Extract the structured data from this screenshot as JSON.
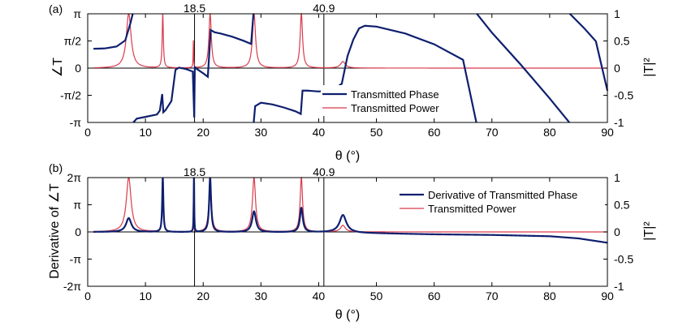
{
  "chart_data": [
    {
      "type": "line",
      "panel_label": "(a)",
      "xlabel": "θ (°)",
      "ylabel_left": "∠T",
      "ylabel_right": "|T|²",
      "xlim": [
        0,
        90
      ],
      "ylim_left": [
        -3.1416,
        3.1416
      ],
      "ylim_right": [
        -1,
        1
      ],
      "xticks": [
        "0",
        "10",
        "20",
        "30",
        "40",
        "50",
        "60",
        "70",
        "80",
        "90"
      ],
      "yticks_left": [
        "-π",
        "-π/2",
        "0",
        "π/2",
        "π"
      ],
      "yticks_right": [
        "-1",
        "-0.5",
        "0",
        "0.5",
        "1"
      ],
      "markers": [
        {
          "x": 18.5,
          "label": "18.5"
        },
        {
          "x": 40.9,
          "label": "40.9"
        }
      ],
      "legend": [
        "Transmitted Phase",
        "Transmitted Power"
      ],
      "series": [
        {
          "name": "Transmitted Phase",
          "axis": "left",
          "color": "#0e1f6e",
          "points": [
            [
              1,
              1.12
            ],
            [
              3,
              1.14
            ],
            [
              5,
              1.25
            ],
            [
              6.5,
              1.6
            ],
            [
              7.4,
              2.6
            ],
            [
              7.8,
              3.14
            ],
            [
              7.9,
              -3.14
            ],
            [
              8.5,
              -2.92
            ],
            [
              10,
              -2.82
            ],
            [
              12,
              -2.68
            ],
            [
              12.5,
              -2.45
            ],
            [
              12.9,
              -1.5
            ],
            [
              13.1,
              -2.55
            ],
            [
              13.5,
              -2.42
            ],
            [
              14.5,
              -1.9
            ],
            [
              15.2,
              -0.1
            ],
            [
              15.8,
              0.03
            ],
            [
              17,
              -0.05
            ],
            [
              18.2,
              -0.2
            ],
            [
              18.45,
              -2.85
            ],
            [
              18.55,
              0.05
            ],
            [
              18.9,
              -0.05
            ],
            [
              20,
              -0.3
            ],
            [
              20.8,
              -0.5
            ],
            [
              21.3,
              2.2
            ],
            [
              22,
              2.07
            ],
            [
              23,
              2.0
            ],
            [
              25,
              1.82
            ],
            [
              27,
              1.58
            ],
            [
              28.3,
              1.4
            ],
            [
              28.7,
              3.14
            ],
            [
              28.75,
              -3.14
            ],
            [
              29,
              -2.2
            ],
            [
              30,
              -2.0
            ],
            [
              32,
              -2.1
            ],
            [
              34,
              -2.28
            ],
            [
              36,
              -2.5
            ],
            [
              36.9,
              -2.65
            ],
            [
              37.2,
              -1.3
            ],
            [
              38,
              -1.3
            ],
            [
              40,
              -1.35
            ],
            [
              42,
              -1.28
            ],
            [
              43,
              -1.15
            ],
            [
              44,
              -0.9
            ],
            [
              45,
              0.7
            ],
            [
              46,
              1.65
            ],
            [
              47,
              2.3
            ],
            [
              48,
              2.45
            ],
            [
              50,
              2.4
            ],
            [
              55,
              2.0
            ],
            [
              60,
              1.38
            ],
            [
              65,
              0.48
            ],
            [
              67.3,
              -3.14
            ],
            [
              67.4,
              3.14
            ],
            [
              70,
              2.05
            ],
            [
              75,
              0.2
            ],
            [
              80,
              -1.75
            ],
            [
              83.4,
              -3.14
            ],
            [
              83.5,
              3.14
            ],
            [
              86,
              2.3
            ],
            [
              88,
              1.55
            ],
            [
              90,
              -1.3
            ]
          ]
        },
        {
          "name": "Transmitted Power",
          "axis": "right",
          "color": "#d93b4b",
          "peaks": [
            {
              "x": 7.1,
              "h": 1.0,
              "w": 0.5
            },
            {
              "x": 13.0,
              "h": 1.0,
              "w": 0.12
            },
            {
              "x": 18.3,
              "h": 0.5,
              "w": 0.05
            },
            {
              "x": 21.2,
              "h": 1.0,
              "w": 0.25
            },
            {
              "x": 28.8,
              "h": 1.0,
              "w": 0.32
            },
            {
              "x": 37.0,
              "h": 1.0,
              "w": 0.25
            },
            {
              "x": 44.2,
              "h": 0.12,
              "w": 0.5
            }
          ]
        }
      ]
    },
    {
      "type": "line",
      "panel_label": "(b)",
      "xlabel": "θ (°)",
      "ylabel_left": "Derivative of ∠T",
      "ylabel_right": "|T|²",
      "xlim": [
        0,
        90
      ],
      "ylim_left": [
        -6.2832,
        6.2832
      ],
      "ylim_right": [
        -1,
        1
      ],
      "xticks": [
        "0",
        "10",
        "20",
        "30",
        "40",
        "50",
        "60",
        "70",
        "80",
        "90"
      ],
      "yticks_left": [
        "-2π",
        "-π",
        "0",
        "π",
        "2π"
      ],
      "yticks_right": [
        "-1",
        "-0.5",
        "0",
        "0.5",
        "1"
      ],
      "markers": [
        {
          "x": 18.5,
          "label": "18.5"
        },
        {
          "x": 40.9,
          "label": "40.9"
        }
      ],
      "legend": [
        "Derivative of Transmitted Phase",
        "Transmitted Power"
      ],
      "series": [
        {
          "name": "Derivative of Transmitted Phase",
          "axis": "left",
          "color": "#0e1f6e",
          "peaks": [
            {
              "x": 7.1,
              "h": 1.6,
              "w": 0.55
            },
            {
              "x": 13.0,
              "h": 6.28,
              "w": 0.12
            },
            {
              "x": 18.4,
              "h": 6.28,
              "w": 0.05
            },
            {
              "x": 21.2,
              "h": 6.28,
              "w": 0.2
            },
            {
              "x": 28.8,
              "h": 2.4,
              "w": 0.4
            },
            {
              "x": 37.0,
              "h": 2.8,
              "w": 0.3
            },
            {
              "x": 44.2,
              "h": 2.0,
              "w": 0.7
            }
          ],
          "baseline": [
            [
              0,
              0
            ],
            [
              45,
              -0.05
            ],
            [
              47,
              -0.12
            ],
            [
              60,
              -0.28
            ],
            [
              70,
              -0.35
            ],
            [
              80,
              -0.5
            ],
            [
              85,
              -0.75
            ],
            [
              88,
              -1.05
            ],
            [
              90,
              -1.25
            ]
          ]
        },
        {
          "name": "Transmitted Power",
          "axis": "right",
          "color": "#d93b4b",
          "peaks": [
            {
              "x": 7.1,
              "h": 1.0,
              "w": 0.5
            },
            {
              "x": 13.0,
              "h": 1.0,
              "w": 0.12
            },
            {
              "x": 18.3,
              "h": 0.5,
              "w": 0.05
            },
            {
              "x": 21.2,
              "h": 1.0,
              "w": 0.25
            },
            {
              "x": 28.8,
              "h": 1.0,
              "w": 0.32
            },
            {
              "x": 37.0,
              "h": 1.0,
              "w": 0.25
            },
            {
              "x": 44.2,
              "h": 0.12,
              "w": 0.5
            }
          ]
        }
      ]
    }
  ]
}
